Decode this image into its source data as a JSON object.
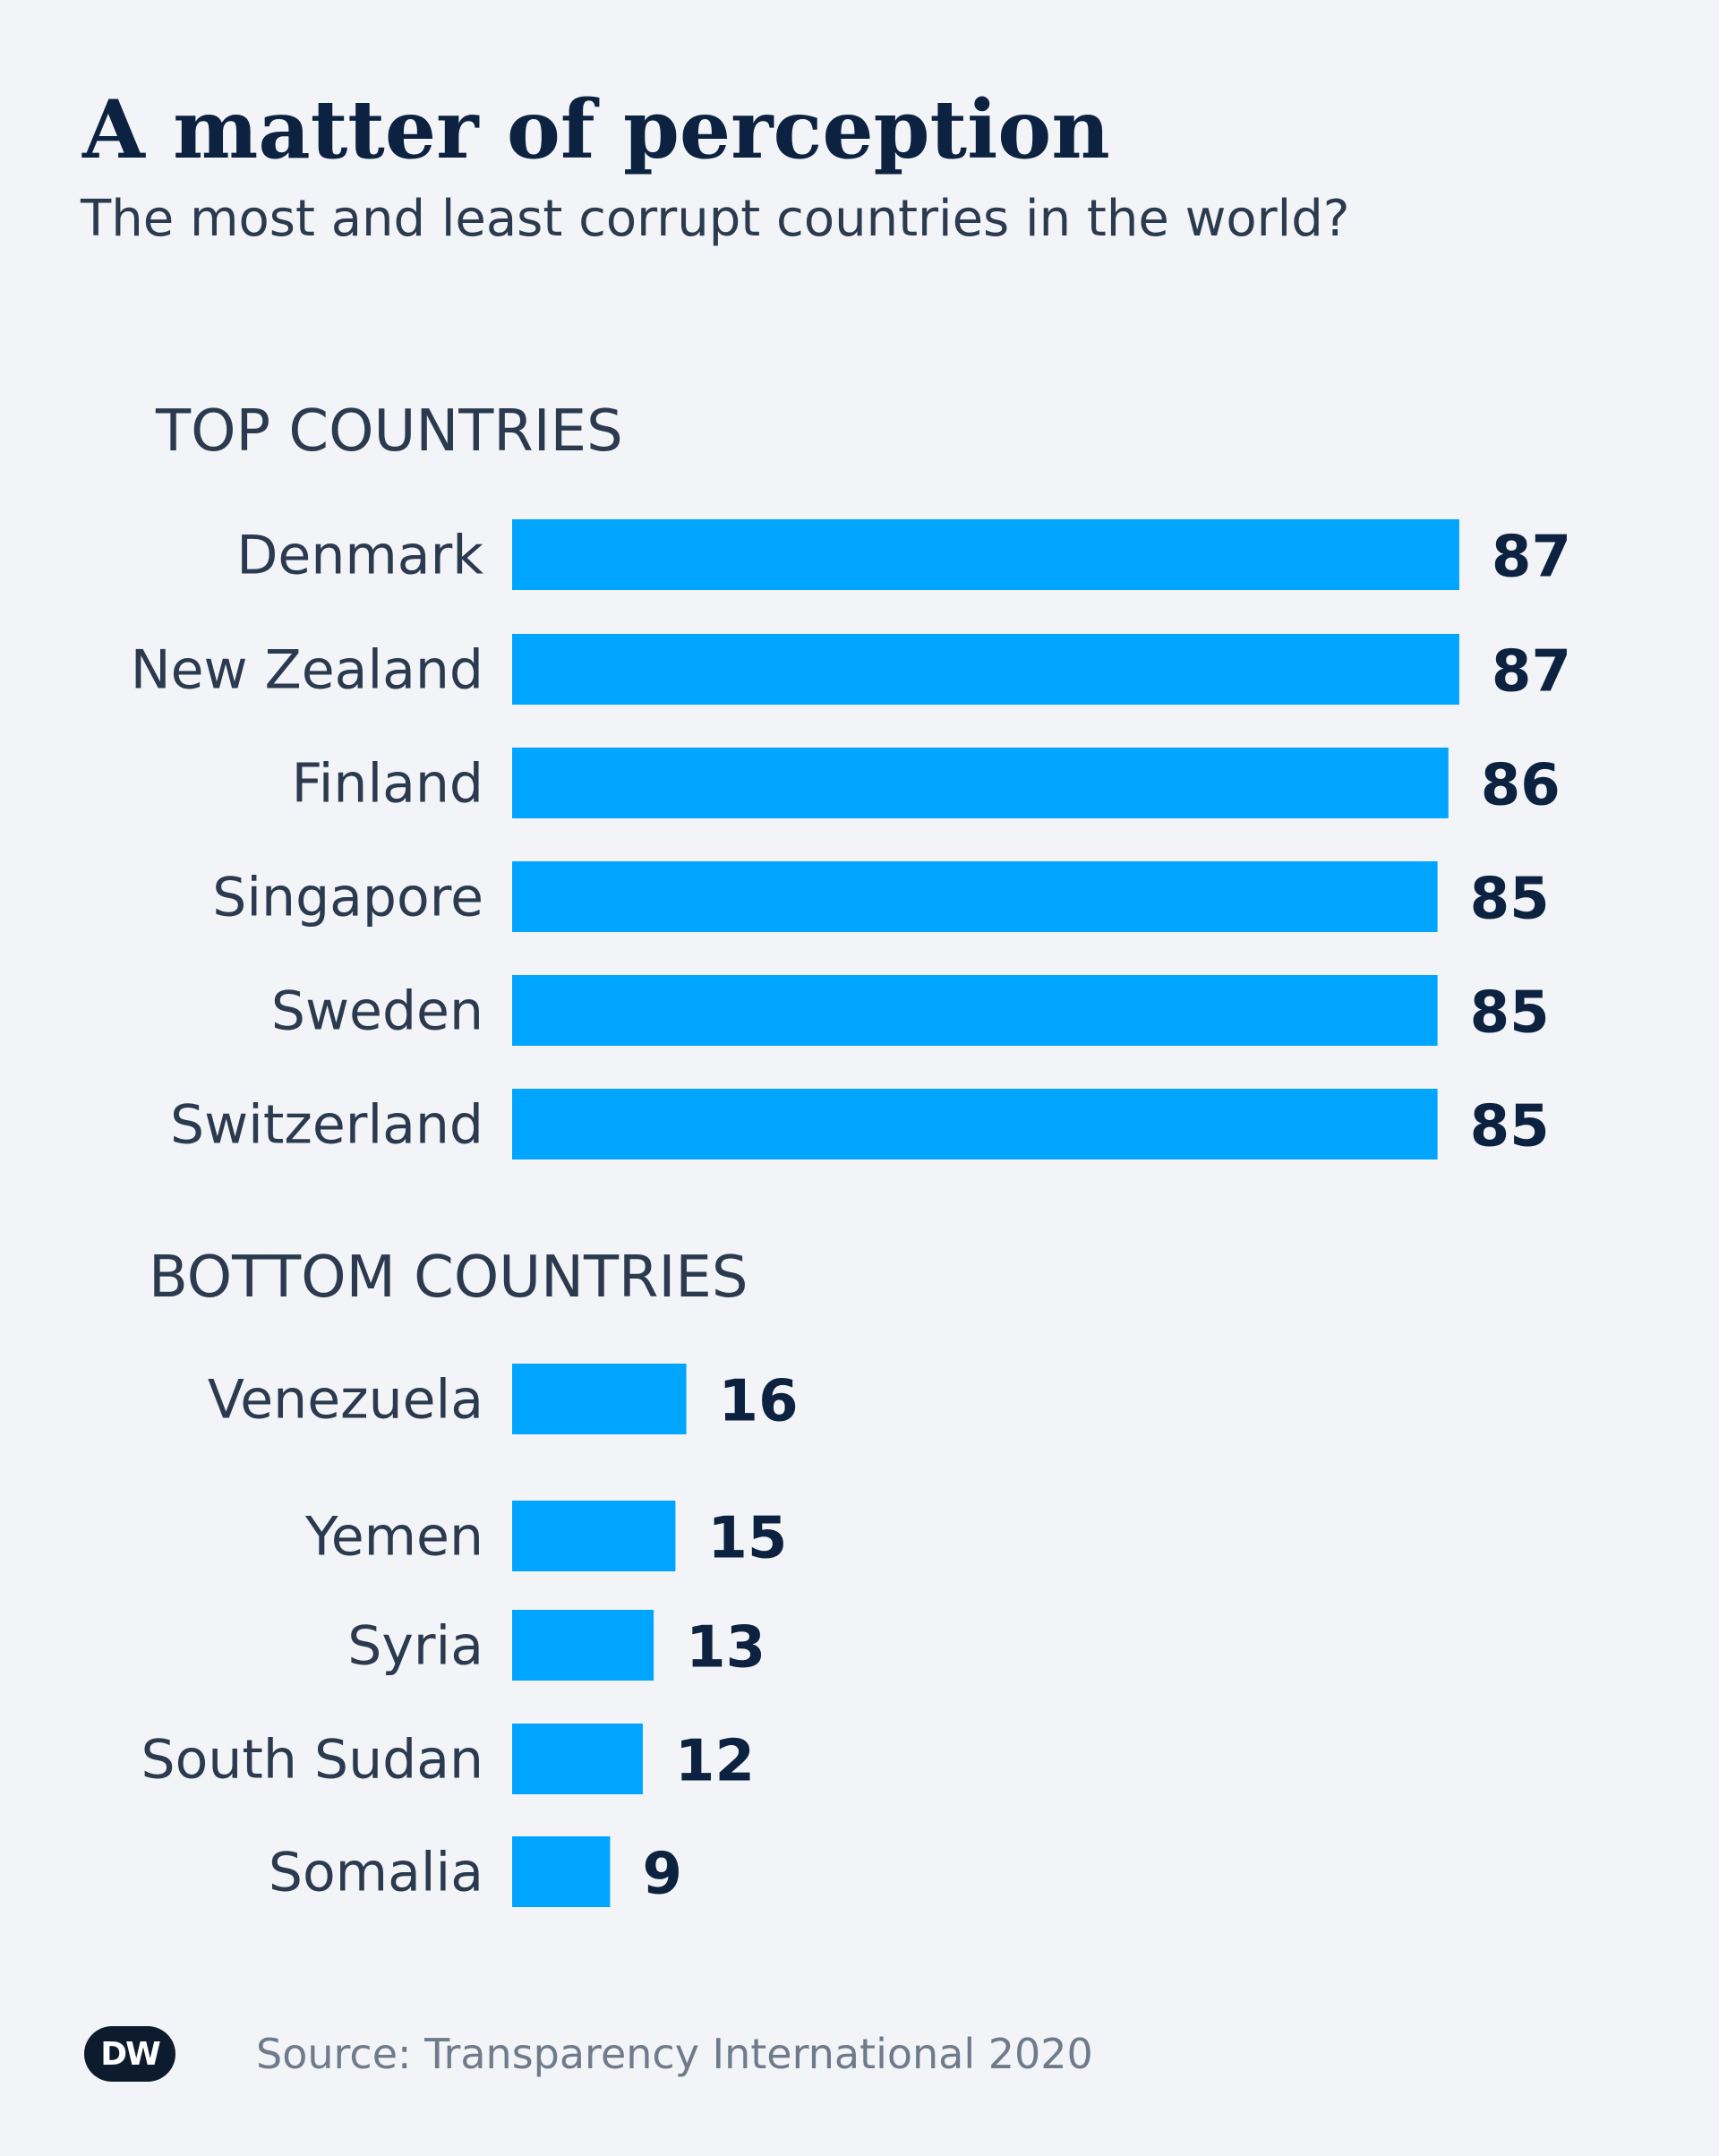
{
  "header": {
    "title": "A matter of perception",
    "subtitle": "The most and least corrupt countries in the world?"
  },
  "footer": {
    "logo_text": "DW",
    "source": "Source: Transparency International 2020"
  },
  "colors": {
    "bar": "#00a5ff",
    "value_text": "#0d2240",
    "label_text": "#2b3a4f"
  },
  "chart_data": {
    "type": "bar",
    "orientation": "horizontal",
    "title": "A matter of perception",
    "subtitle": "The most and least corrupt countries in the world?",
    "xlim": [
      0,
      100
    ],
    "grid": false,
    "groups": [
      {
        "name": "TOP COUNTRIES",
        "categories": [
          "Denmark",
          "New Zealand",
          "Finland",
          "Singapore",
          "Sweden",
          "Switzerland"
        ],
        "values": [
          87,
          87,
          86,
          85,
          85,
          85
        ]
      },
      {
        "name": "BOTTOM COUNTRIES",
        "categories": [
          "Venezuela",
          "Yemen",
          "Syria",
          "South Sudan",
          "Somalia"
        ],
        "values": [
          16,
          15,
          13,
          12,
          9
        ]
      }
    ]
  }
}
